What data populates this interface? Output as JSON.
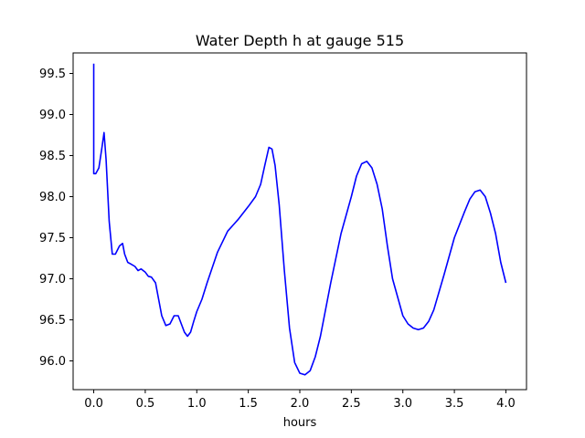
{
  "chart_data": {
    "type": "line",
    "title": "Water Depth h at gauge 515",
    "xlabel": "hours",
    "ylabel": "",
    "xlim": [
      -0.2,
      4.2
    ],
    "ylim": [
      95.65,
      99.75
    ],
    "xticks": [
      0.0,
      0.5,
      1.0,
      1.5,
      2.0,
      2.5,
      3.0,
      3.5,
      4.0
    ],
    "xtick_labels": [
      "0.0",
      "0.5",
      "1.0",
      "1.5",
      "2.0",
      "2.5",
      "3.0",
      "3.5",
      "4.0"
    ],
    "yticks": [
      96.0,
      96.5,
      97.0,
      97.5,
      98.0,
      98.5,
      99.0,
      99.5
    ],
    "ytick_labels": [
      "96.0",
      "96.5",
      "97.0",
      "97.5",
      "98.0",
      "98.5",
      "99.0",
      "99.5"
    ],
    "grid": false,
    "legend": false,
    "series": [
      {
        "color": "#0000ff",
        "x": [
          0.0,
          0.0,
          0.0,
          0.02,
          0.05,
          0.08,
          0.1,
          0.12,
          0.15,
          0.18,
          0.21,
          0.25,
          0.28,
          0.3,
          0.33,
          0.36,
          0.4,
          0.43,
          0.46,
          0.5,
          0.53,
          0.56,
          0.6,
          0.63,
          0.66,
          0.7,
          0.74,
          0.78,
          0.82,
          0.85,
          0.88,
          0.91,
          0.94,
          0.97,
          1.0,
          1.05,
          1.1,
          1.2,
          1.3,
          1.35,
          1.4,
          1.5,
          1.57,
          1.62,
          1.66,
          1.7,
          1.73,
          1.76,
          1.8,
          1.85,
          1.9,
          1.95,
          2.0,
          2.05,
          2.1,
          2.15,
          2.2,
          2.3,
          2.4,
          2.5,
          2.55,
          2.6,
          2.65,
          2.7,
          2.75,
          2.8,
          2.85,
          2.9,
          3.0,
          3.05,
          3.1,
          3.15,
          3.2,
          3.25,
          3.3,
          3.4,
          3.5,
          3.6,
          3.65,
          3.7,
          3.75,
          3.8,
          3.85,
          3.9,
          3.95,
          4.0
        ],
        "y": [
          99.62,
          98.6,
          98.28,
          98.28,
          98.35,
          98.6,
          98.78,
          98.45,
          97.7,
          97.3,
          97.3,
          97.4,
          97.43,
          97.3,
          97.2,
          97.18,
          97.15,
          97.1,
          97.12,
          97.08,
          97.03,
          97.02,
          96.95,
          96.75,
          96.55,
          96.43,
          96.45,
          96.55,
          96.55,
          96.45,
          96.35,
          96.3,
          96.35,
          96.48,
          96.6,
          96.75,
          96.95,
          97.32,
          97.58,
          97.65,
          97.72,
          97.88,
          98.0,
          98.15,
          98.38,
          98.6,
          98.58,
          98.38,
          97.9,
          97.1,
          96.4,
          95.98,
          95.85,
          95.83,
          95.88,
          96.05,
          96.3,
          96.95,
          97.55,
          98.0,
          98.25,
          98.4,
          98.43,
          98.35,
          98.15,
          97.85,
          97.4,
          97.0,
          96.55,
          96.45,
          96.4,
          96.38,
          96.4,
          96.48,
          96.62,
          97.05,
          97.5,
          97.82,
          97.97,
          98.06,
          98.08,
          98.0,
          97.8,
          97.55,
          97.2,
          96.95
        ]
      }
    ]
  }
}
